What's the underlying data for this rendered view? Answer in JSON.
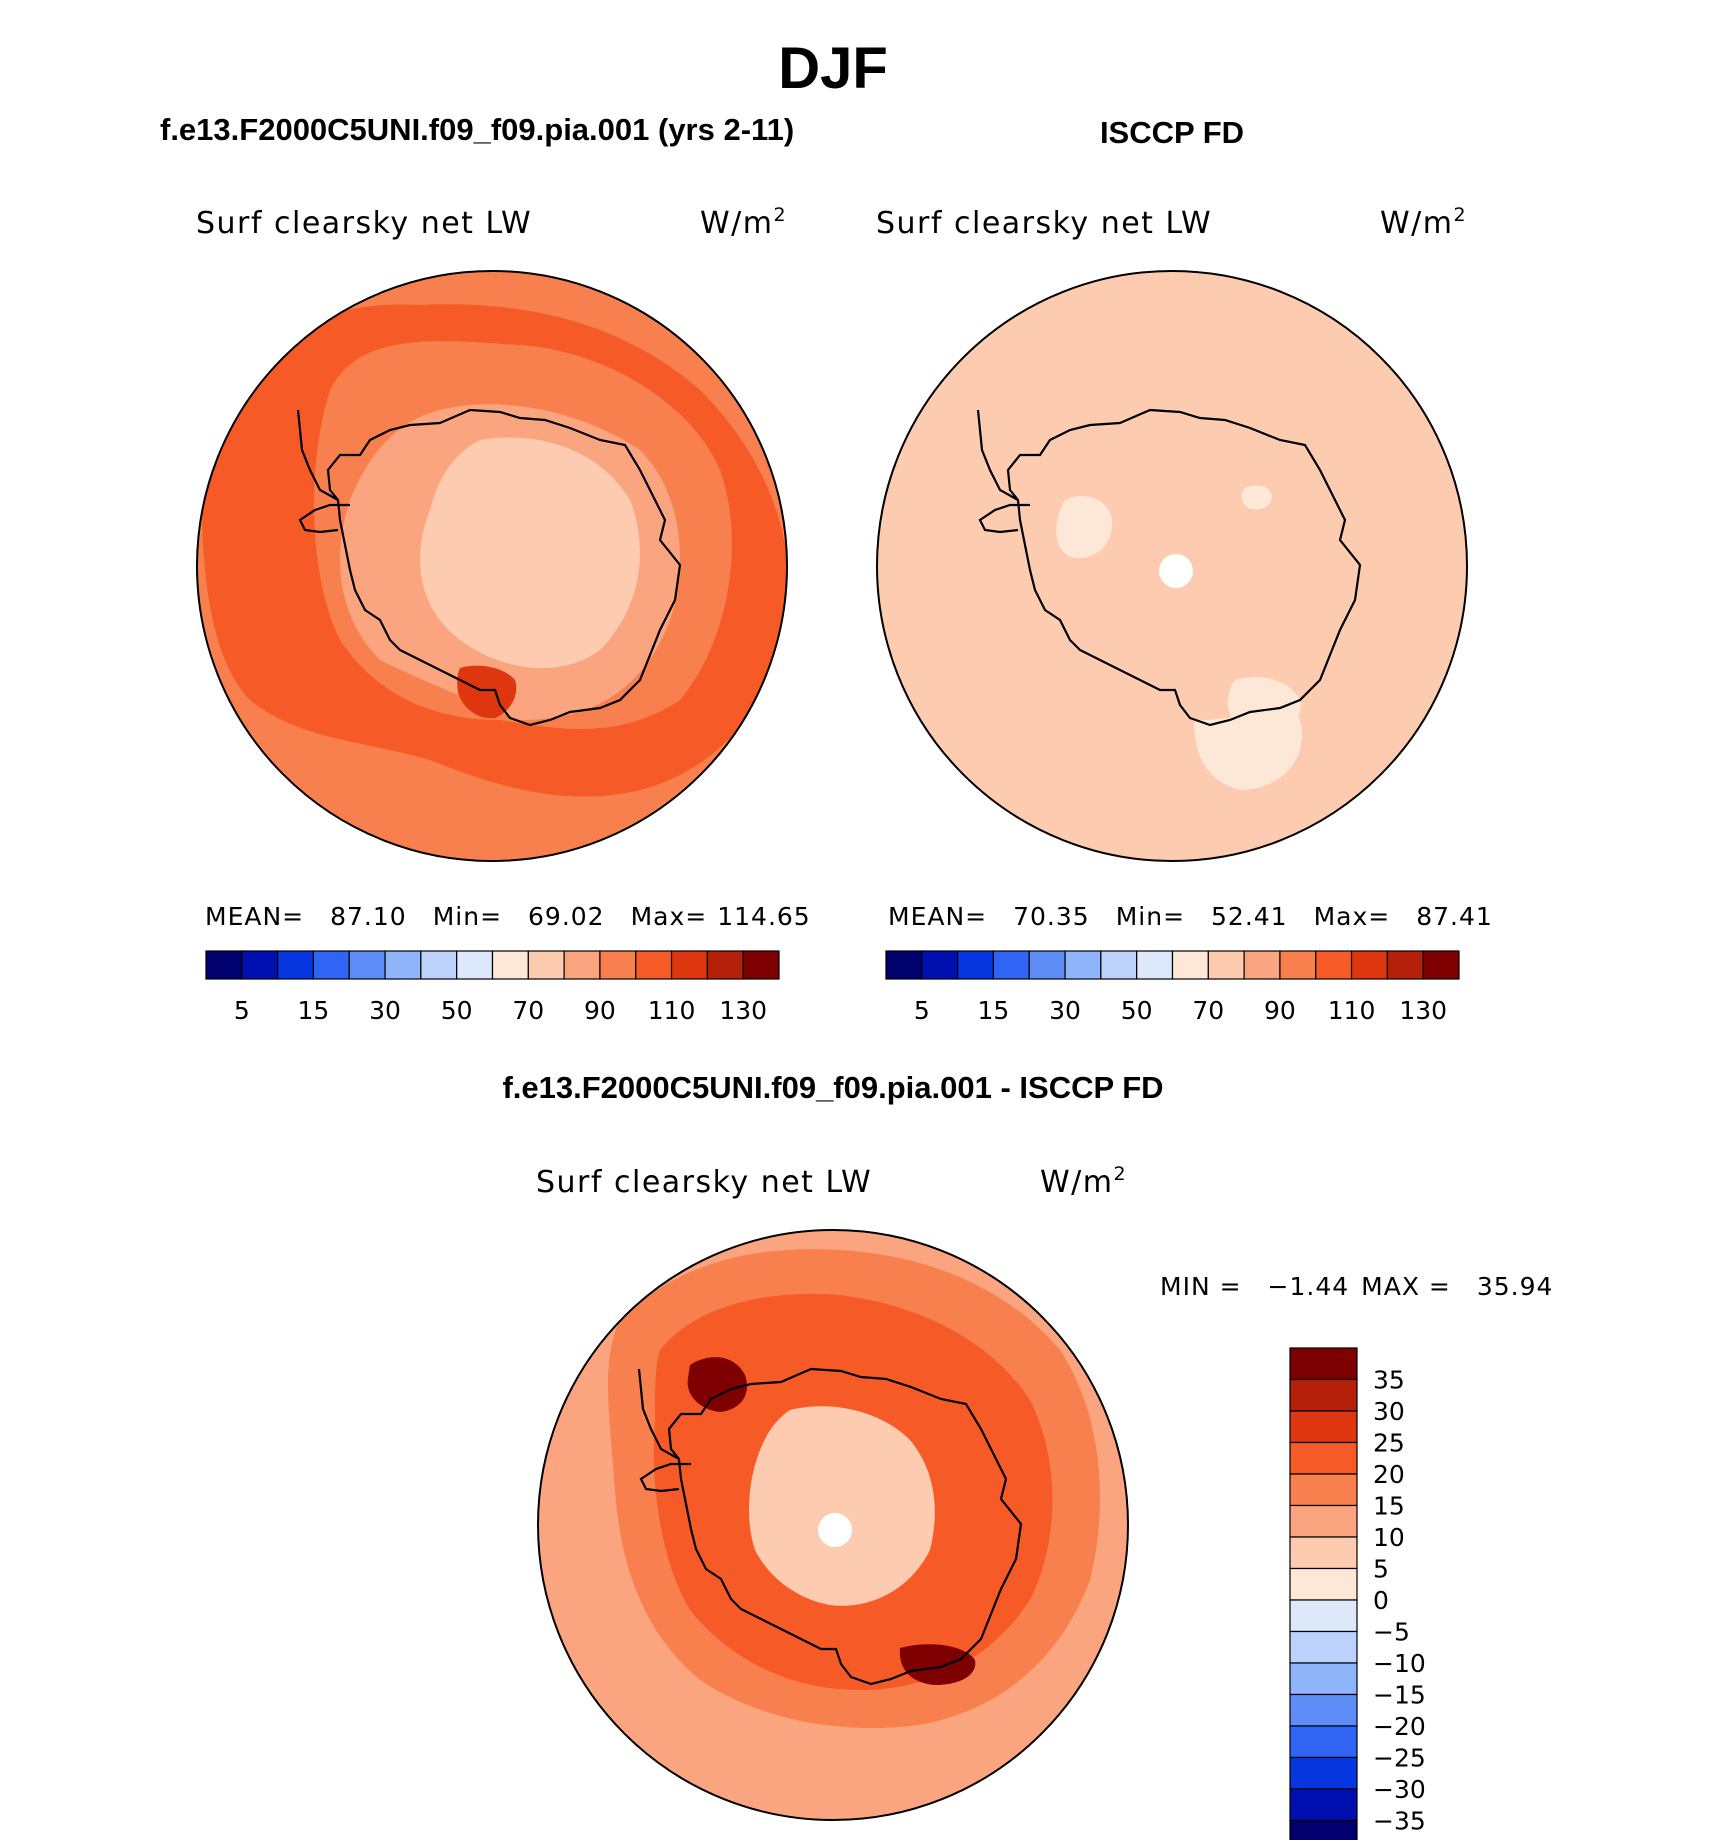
{
  "title": "DJF",
  "colors": {
    "absolute_palette": [
      "#00006e",
      "#0010b0",
      "#0636e0",
      "#2f64f5",
      "#5e8df8",
      "#8fb4fa",
      "#bcd2fb",
      "#dde9fb",
      "#fde7d6",
      "#fccbb0",
      "#faa57f",
      "#f8804f",
      "#f65a27",
      "#de3710",
      "#b4200a",
      "#7e0000"
    ],
    "diff_palette": [
      "#00006e",
      "#0010b0",
      "#0636e0",
      "#2f64f5",
      "#5e8df8",
      "#8fb4fa",
      "#bcd2fb",
      "#dde9fb",
      "#fde7d6",
      "#fccbb0",
      "#faa57f",
      "#f8804f",
      "#f65a27",
      "#de3710",
      "#b4200a",
      "#7e0000"
    ]
  },
  "chart_data": [
    {
      "type": "heatmap",
      "projection": "south-polar-stereographic",
      "title": "f.e13.F2000C5UNI.f09_f09.pia.001 (yrs 2-11)",
      "variable": "Surf clearsky net LW",
      "units": "W/m",
      "units_sup": "2",
      "stats": {
        "mean_label": "MEAN=",
        "mean": "87.10",
        "min_label": "Min=",
        "min": "69.02",
        "max_label": "Max=",
        "max": "114.65"
      },
      "colorbar": {
        "ticks": [
          "5",
          "15",
          "30",
          "50",
          "70",
          "90",
          "110",
          "130"
        ]
      },
      "zones": {
        "ocean_outer": 90,
        "ocean_mid": 105,
        "ocean_inner": 95,
        "coast": 80,
        "interior": 73,
        "max_spot": 114.65
      }
    },
    {
      "type": "heatmap",
      "projection": "south-polar-stereographic",
      "title": "ISCCP FD",
      "variable": "Surf clearsky net LW",
      "units": "W/m",
      "units_sup": "2",
      "stats": {
        "mean_label": "MEAN=",
        "mean": "70.35",
        "min_label": "Min=",
        "min": "52.41",
        "max_label": "Max=",
        "max": "87.41"
      },
      "colorbar": {
        "ticks": [
          "5",
          "15",
          "30",
          "50",
          "70",
          "90",
          "110",
          "130"
        ]
      },
      "zones": {
        "ocean_outer": 75,
        "ocean_mid": 72,
        "ocean_inner": 68,
        "coast": 72,
        "interior": 62,
        "min_spot": 52.41
      }
    },
    {
      "type": "heatmap",
      "projection": "south-polar-stereographic",
      "title": "f.e13.F2000C5UNI.f09_f09.pia.001 - ISCCP FD",
      "variable": "Surf clearsky net LW",
      "units": "W/m",
      "units_sup": "2",
      "stats": {
        "min_label": "MIN =",
        "min": "−1.44",
        "max_label": "MAX =",
        "max": "35.94"
      },
      "colorbar": {
        "orientation": "vertical",
        "ticks": [
          "35",
          "30",
          "25",
          "20",
          "15",
          "10",
          "5",
          "0",
          "−5",
          "−10",
          "−15",
          "−20",
          "−25",
          "−30",
          "−35"
        ]
      },
      "zones": {
        "ocean_outer": 12,
        "ocean_mid": 18,
        "ocean_inner": 22,
        "coast": 22,
        "interior": 8,
        "max_spot": 35.94
      }
    }
  ]
}
